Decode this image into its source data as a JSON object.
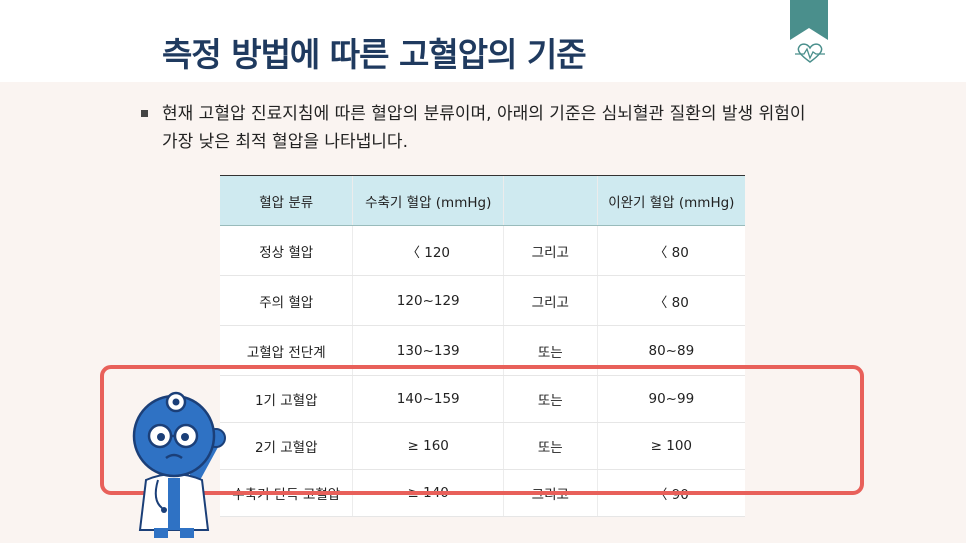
{
  "header": {
    "title": "측정 방법에 따른 고혈압의 기준",
    "bookmark_color": "#4a8f8c",
    "heart_icon": "heartbeat-icon"
  },
  "body": {
    "bullet_text": "현재 고혈압 진료지침에 따른 혈압의 분류이며, 아래의 기준은 심뇌혈관 질환의 발생 위험이 가장 낮은 최적 혈압을 나타냅니다."
  },
  "table": {
    "headers": [
      "혈압 분류",
      "수축기 혈압 (mmHg)",
      "",
      "이완기 혈압 (mmHg)"
    ],
    "rows": [
      [
        "정상 혈압",
        "〈 120",
        "그리고",
        "〈 80"
      ],
      [
        "주의 혈압",
        "120~129",
        "그리고",
        "〈 80"
      ],
      [
        "고혈압 전단계",
        "130~139",
        "또는",
        "80~89"
      ],
      [
        "1기 고혈압",
        "140~159",
        "또는",
        "90~99"
      ],
      [
        "2기 고혈압",
        "≥ 160",
        "또는",
        "≥ 100"
      ],
      [
        "수축기 단독 고혈압",
        "≥ 140",
        "그리고",
        "〈 90"
      ]
    ]
  },
  "colors": {
    "title": "#1f3a5f",
    "header_bg": "#cfeaf0",
    "highlight": "#e8605a",
    "mascot": "#2f72c4"
  }
}
